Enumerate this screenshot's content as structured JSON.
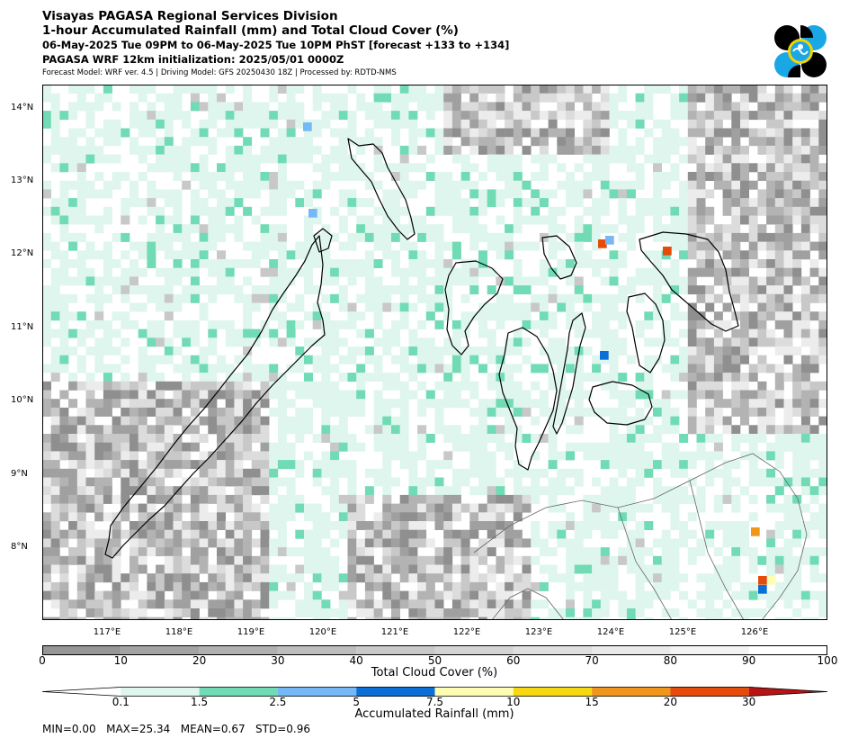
{
  "header": {
    "line1": "Visayas PAGASA Regional Services Division",
    "line2": "1-hour Accumulated Rainfall (mm) and Total Cloud Cover (%)",
    "line3": "06-May-2025 Tue 09PM to 06-May-2025 Tue 10PM PhST [forecast +133 to +134]",
    "line4": "PAGASA WRF 12km initialization: 2025/05/01 0000Z",
    "line5": "Forecast Model: WRF ver. 4.5 | Driving Model: GFS 20250430 18Z | Processed by: RDTD-NMS"
  },
  "logo": {
    "icon": "pagasa-logo-icon",
    "colors": [
      "#000000",
      "#1aa7e6",
      "#f5d400"
    ]
  },
  "map": {
    "lat_labels": [
      "14°N",
      "13°N",
      "12°N",
      "11°N",
      "10°N",
      "9°N",
      "8°N"
    ],
    "lon_labels": [
      "117°E",
      "118°E",
      "119°E",
      "120°E",
      "121°E",
      "122°E",
      "123°E",
      "124°E",
      "125°E",
      "126°E"
    ],
    "ocean_color": "#ffffff",
    "coast_color": "#000000"
  },
  "cloud_legend": {
    "title": "Total Cloud Cover (%)",
    "ticks": [
      "0",
      "10",
      "20",
      "30",
      "40",
      "50",
      "60",
      "70",
      "80",
      "90",
      "100"
    ],
    "colors": [
      "#969696",
      "#a3a3a3",
      "#b0b0b0",
      "#bdbdbd",
      "#c9c9c9",
      "#d4d4d4",
      "#dfdfdf",
      "#e9e9e9",
      "#f3f3f3",
      "#ffffff"
    ]
  },
  "rain_legend": {
    "title": "Accumulated Rainfall (mm)",
    "ticks": [
      "0.1",
      "1.5",
      "2.5",
      "5",
      "7.5",
      "10",
      "15",
      "20",
      "30"
    ],
    "colors": [
      "#ffffff",
      "#dff6ee",
      "#70dbb4",
      "#74b8f6",
      "#0a6fd6",
      "#fdfdb4",
      "#f6d812",
      "#f0961a",
      "#e54b0a",
      "#b71414"
    ]
  },
  "stats": "MIN=0.00   MAX=25.34   MEAN=0.67   STD=0.96"
}
